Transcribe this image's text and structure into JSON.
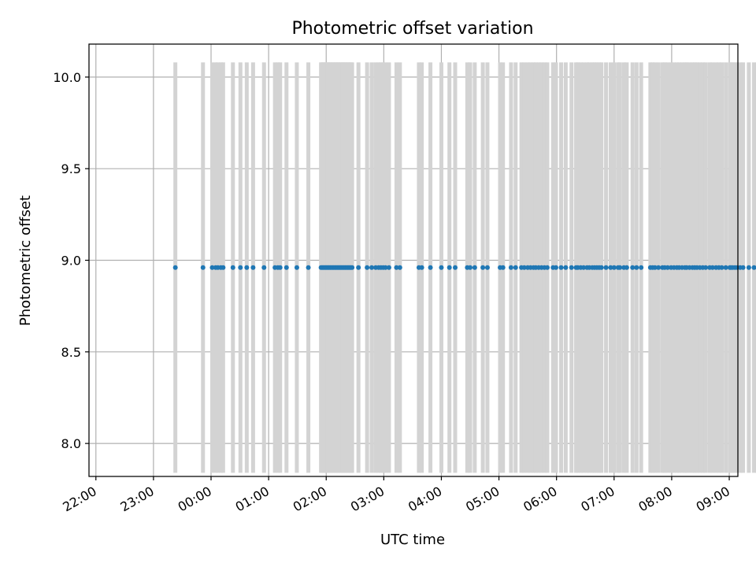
{
  "chart_data": {
    "type": "scatter",
    "title": "Photometric offset variation",
    "xlabel": "UTC time",
    "ylabel": "Photometric offset",
    "x_tick_labels": [
      "22:00",
      "23:00",
      "00:00",
      "01:00",
      "02:00",
      "03:00",
      "04:00",
      "05:00",
      "06:00",
      "07:00",
      "08:00",
      "09:00"
    ],
    "y_tick_labels": [
      "8.0",
      "8.5",
      "9.0",
      "9.5",
      "10.0"
    ],
    "y_ticks": [
      8.0,
      8.5,
      9.0,
      9.5,
      10.0
    ],
    "xlim_hours": [
      21.88,
      33.15
    ],
    "ylim": [
      7.82,
      10.18
    ],
    "grid": true,
    "point_value": 8.96,
    "errorbar_range": [
      7.84,
      10.08
    ],
    "point_color": "#1f77b4",
    "errorbar_color": "#d3d3d3",
    "x_hours": [
      23.38,
      23.86,
      24.02,
      24.08,
      24.12,
      24.17,
      24.21,
      24.38,
      24.51,
      24.62,
      24.73,
      24.92,
      25.11,
      25.16,
      25.2,
      25.31,
      25.49,
      25.69,
      25.91,
      25.93,
      25.95,
      25.97,
      25.99,
      26.01,
      26.03,
      26.05,
      26.07,
      26.09,
      26.11,
      26.13,
      26.15,
      26.17,
      26.19,
      26.21,
      26.23,
      26.25,
      26.27,
      26.29,
      26.31,
      26.33,
      26.35,
      26.37,
      26.39,
      26.41,
      26.43,
      26.45,
      26.56,
      26.71,
      26.79,
      26.86,
      26.91,
      26.95,
      26.99,
      27.03,
      27.09,
      27.22,
      27.28,
      27.61,
      27.66,
      27.81,
      28.0,
      28.14,
      28.24,
      28.45,
      28.5,
      28.58,
      28.72,
      28.8,
      29.02,
      29.07,
      29.21,
      29.29,
      29.39,
      29.44,
      29.5,
      29.55,
      29.6,
      29.64,
      29.69,
      29.74,
      29.79,
      29.84,
      29.94,
      29.99,
      30.08,
      30.16,
      30.26,
      30.34,
      30.37,
      30.42,
      30.47,
      30.53,
      30.57,
      30.62,
      30.66,
      30.7,
      30.74,
      30.78,
      30.86,
      30.94,
      31.0,
      31.07,
      31.1,
      31.17,
      31.22,
      31.32,
      31.39,
      31.47,
      31.63,
      31.67,
      31.71,
      31.77,
      31.84,
      31.88,
      31.93,
      31.99,
      32.04,
      32.09,
      32.13,
      32.18,
      32.23,
      32.26,
      32.31,
      32.36,
      32.4,
      32.44,
      32.49,
      32.54,
      32.59,
      32.66,
      32.71,
      32.77,
      32.82,
      32.87,
      32.94,
      33.01,
      33.03,
      33.06,
      33.1,
      33.14,
      33.19,
      33.24,
      33.34,
      33.43,
      33.49,
      33.53,
      33.56,
      33.59,
      33.62
    ]
  }
}
